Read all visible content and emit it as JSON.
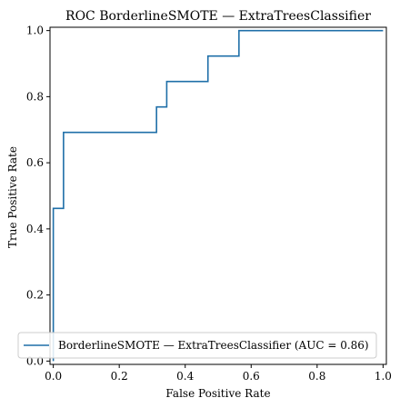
{
  "chart_data": {
    "type": "line",
    "title": "ROC BorderlineSMOTE — ExtraTreesClassifier",
    "xlabel": "False Positive Rate",
    "ylabel": "True Positive Rate",
    "xlim": [
      -0.01,
      1.01
    ],
    "ylim": [
      -0.01,
      1.01
    ],
    "xticks": [
      "0.0",
      "0.2",
      "0.4",
      "0.6",
      "0.8",
      "1.0"
    ],
    "yticks": [
      "0.0",
      "0.2",
      "0.4",
      "0.6",
      "0.8",
      "1.0"
    ],
    "grid": false,
    "legend_position": "lower-right",
    "color": "#1f6fa8",
    "series": [
      {
        "name": "BorderlineSMOTE — ExtraTreesClassifier (AUC = 0.86)",
        "x": [
          0.0,
          0.0,
          0.0,
          0.0,
          0.0,
          0.0,
          0.031,
          0.031,
          0.313,
          0.313,
          0.344,
          0.344,
          0.469,
          0.469,
          0.563,
          0.563,
          1.0
        ],
        "y": [
          0.0,
          0.077,
          0.154,
          0.385,
          0.462,
          0.462,
          0.462,
          0.692,
          0.692,
          0.769,
          0.769,
          0.846,
          0.846,
          0.923,
          0.923,
          1.0,
          1.0
        ]
      }
    ]
  }
}
